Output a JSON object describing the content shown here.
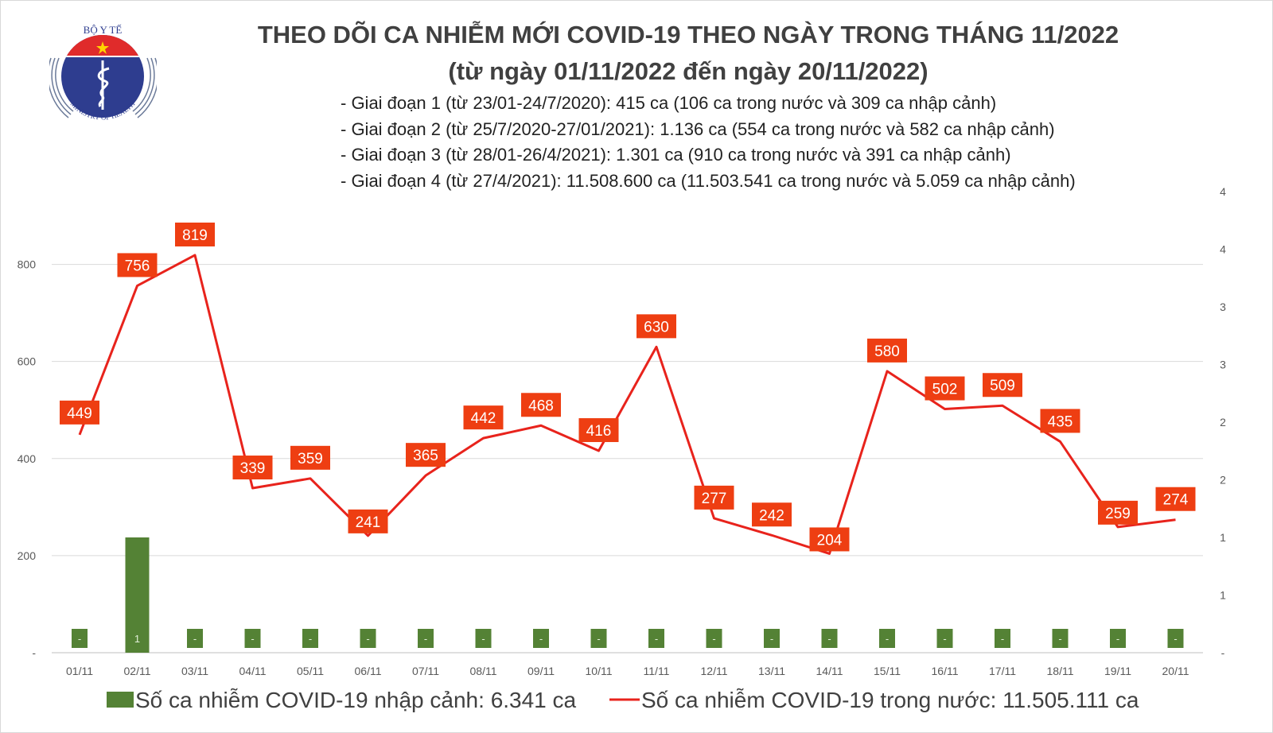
{
  "header": {
    "title": "THEO DÕI CA NHIỄM MỚI COVID-19 THEO NGÀY TRONG THÁNG 11/2022",
    "subtitle": "(từ ngày 01/11/2022 đến ngày 20/11/2022)",
    "stages": [
      "- Giai đoạn 1 (từ 23/01-24/7/2020): 415 ca (106 ca trong nước và 309 ca nhập cảnh)",
      "- Giai đoạn 2 (từ 25/7/2020-27/01/2021): 1.136 ca (554 ca trong nước và 582 ca nhập cảnh)",
      "- Giai đoạn 3 (từ 28/01-26/4/2021): 1.301 ca (910 ca trong nước và 391 ca nhập cảnh)",
      "- Giai đoạn 4 (từ 27/4/2021): 11.508.600 ca (11.503.541 ca trong nước và 5.059 ca nhập cảnh)"
    ]
  },
  "logo": {
    "top_text": "BỘ Y TẾ",
    "bottom_text": "MINISTRY OF HEALTH"
  },
  "chart_data": {
    "type": "bar+line",
    "categories": [
      "01/11",
      "02/11",
      "03/11",
      "04/11",
      "05/11",
      "06/11",
      "07/11",
      "08/11",
      "09/11",
      "10/11",
      "11/11",
      "12/11",
      "13/11",
      "14/11",
      "15/11",
      "16/11",
      "17/11",
      "18/11",
      "19/11",
      "20/11"
    ],
    "series": [
      {
        "name": "Số ca nhiễm COVID-19 nhập cảnh: 6.341 ca",
        "type": "bar",
        "axis": "right",
        "color": "#548235",
        "values": [
          0,
          1,
          0,
          0,
          0,
          0,
          0,
          0,
          0,
          0,
          0,
          0,
          0,
          0,
          0,
          0,
          0,
          0,
          0,
          0
        ]
      },
      {
        "name": "Số ca nhiễm COVID-19 trong nước: 11.505.111 ca",
        "type": "line",
        "axis": "left",
        "color": "#e8231c",
        "label_bg": "#ee3e12",
        "values": [
          449,
          756,
          819,
          339,
          359,
          241,
          365,
          442,
          468,
          416,
          630,
          277,
          242,
          204,
          580,
          502,
          509,
          435,
          259,
          274
        ]
      }
    ],
    "left_axis": {
      "ylim": [
        0,
        950
      ],
      "ticks": [
        0,
        200,
        400,
        600,
        800
      ],
      "tick_labels": [
        "-",
        "200",
        "400",
        "600",
        "800"
      ]
    },
    "right_axis": {
      "ylim": [
        0,
        4
      ],
      "ticks": [
        0,
        0.5,
        1,
        1.5,
        2,
        2.5,
        3,
        3.5,
        4
      ],
      "tick_labels": [
        "-",
        "1",
        "1",
        "2",
        "2",
        "3",
        "3",
        "4",
        "4"
      ]
    },
    "grid": "horizontal",
    "legend_placement": "bottom"
  }
}
